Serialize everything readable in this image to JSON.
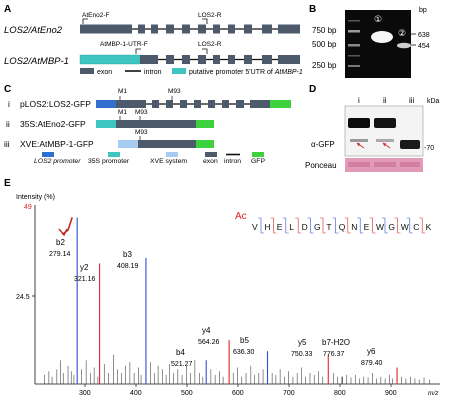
{
  "panelA": {
    "letter": "A",
    "row1_label": "LOS2/AtEno2",
    "row2_label": "LOS2/AtMBP-1",
    "primer_f1": "AtEno2-F",
    "primer_r1": "LOS2-R",
    "primer_f2": "AtMBP-1-UTR-F",
    "primer_r2": "LOS2-R",
    "legend_exon": "exon",
    "legend_intron": "intron",
    "legend_promoter_prefix": "putative promoter 5'UTR of ",
    "legend_promoter_gene": "AtMBP-1",
    "colors": {
      "exon": "#4d5a6b",
      "promoter": "#3fc4c2",
      "intron": "#111111"
    }
  },
  "panelB": {
    "letter": "B",
    "unit": "bp",
    "ladder": [
      "750 bp",
      "500 bp",
      "250 bp"
    ],
    "right_labels": [
      "638",
      "454"
    ],
    "lane_marks": [
      "①",
      "②"
    ]
  },
  "panelC": {
    "letter": "C",
    "constructs": [
      {
        "roman": "i",
        "name": "pLOS2:LOS2-GFP"
      },
      {
        "roman": "ii",
        "name": "35S:AtEno2-GFP"
      },
      {
        "roman": "iii",
        "name": "XVE:AtMBP-1-GFP"
      }
    ],
    "m1": "M1",
    "m93": "M93",
    "legend": {
      "los2_promoter": "LOS2 promoter",
      "p35s": "35S promoter",
      "xve": "XVE system",
      "exon": "exon",
      "intron": "intron",
      "gfp": "GFP"
    },
    "colors": {
      "los2": "#2f6fd0",
      "p35s": "#3fc4c2",
      "xve": "#a6cdf0",
      "exon": "#4d5a6b",
      "gfp": "#3ed13e"
    }
  },
  "panelD": {
    "letter": "D",
    "lanes": [
      "i",
      "ii",
      "iii"
    ],
    "unit": "kDa",
    "marker": "-70",
    "antibody": "α-GFP",
    "ponceau": "Ponceau",
    "colors": {
      "ponceau": "#e39ab8"
    }
  },
  "panelE": {
    "letter": "E",
    "y_title": "Intensity (%)",
    "y_max_label": "49",
    "y_mid_label": "24.5",
    "x_unit": "m/z",
    "x_ticks": [
      "300",
      "400",
      "500",
      "600",
      "700",
      "800",
      "900"
    ],
    "ac_label": "Ac",
    "sequence": [
      "V",
      "H",
      "E",
      "L",
      "D",
      "G",
      "T",
      "Q",
      "N",
      "E",
      "W",
      "G",
      "W",
      "C",
      "K"
    ],
    "peaks": [
      {
        "label": "b2",
        "value": "279.14"
      },
      {
        "label": "y2",
        "value": "321.16"
      },
      {
        "label": "b3",
        "value": "408.19"
      },
      {
        "label": "b4",
        "value": "521.27"
      },
      {
        "label": "y4",
        "value": "564.26"
      },
      {
        "label": "b5",
        "value": "636.30"
      },
      {
        "label": "y5",
        "value": "750.33"
      },
      {
        "label": "b7-H2O",
        "value": "776.37"
      },
      {
        "label": "y6",
        "value": "879.40"
      }
    ],
    "spectrum": {
      "x_range": [
        200,
        960
      ],
      "y_max": 49,
      "labeled": [
        {
          "mz": 279.14,
          "i": 45.5,
          "ion": "b"
        },
        {
          "mz": 321.16,
          "i": 33.0,
          "ion": "y"
        },
        {
          "mz": 408.19,
          "i": 34.5,
          "ion": "b"
        },
        {
          "mz": 521.27,
          "i": 6.5,
          "ion": "b"
        },
        {
          "mz": 564.26,
          "i": 12.0,
          "ion": "y"
        },
        {
          "mz": 636.3,
          "i": 9.0,
          "ion": "b"
        },
        {
          "mz": 750.33,
          "i": 8.0,
          "ion": "y"
        },
        {
          "mz": 776.37,
          "i": 2.0,
          "ion": "o"
        },
        {
          "mz": 879.4,
          "i": 4.5,
          "ion": "y"
        }
      ],
      "minor": [
        [
          218,
          2.5
        ],
        [
          226,
          3.5
        ],
        [
          232,
          2
        ],
        [
          241,
          4
        ],
        [
          248,
          6.5
        ],
        [
          253,
          3
        ],
        [
          262,
          5
        ],
        [
          268,
          3.5
        ],
        [
          273,
          2.5
        ],
        [
          287,
          4
        ],
        [
          296,
          6.5
        ],
        [
          304,
          3
        ],
        [
          311,
          4.5
        ],
        [
          318,
          2
        ],
        [
          330,
          5.5
        ],
        [
          338,
          3
        ],
        [
          347,
          8
        ],
        [
          355,
          4
        ],
        [
          362,
          3
        ],
        [
          370,
          5
        ],
        [
          378,
          6
        ],
        [
          386,
          3
        ],
        [
          394,
          4.5
        ],
        [
          399,
          2.5
        ],
        [
          417,
          6
        ],
        [
          424,
          3
        ],
        [
          431,
          5
        ],
        [
          439,
          4
        ],
        [
          446,
          2.5
        ],
        [
          452,
          5.5
        ],
        [
          460,
          3
        ],
        [
          468,
          4
        ],
        [
          476,
          2.5
        ],
        [
          484,
          5
        ],
        [
          492,
          3
        ],
        [
          500,
          6.5
        ],
        [
          509,
          3
        ],
        [
          515,
          2
        ],
        [
          530,
          4
        ],
        [
          538,
          2.5
        ],
        [
          546,
          3.5
        ],
        [
          553,
          2
        ],
        [
          572,
          3
        ],
        [
          580,
          4.5
        ],
        [
          588,
          2
        ],
        [
          596,
          3
        ],
        [
          605,
          5
        ],
        [
          612,
          2.5
        ],
        [
          620,
          3
        ],
        [
          628,
          4
        ],
        [
          645,
          3
        ],
        [
          652,
          2.5
        ],
        [
          660,
          4
        ],
        [
          668,
          2
        ],
        [
          676,
          3.5
        ],
        [
          684,
          2
        ],
        [
          692,
          3
        ],
        [
          700,
          4.5
        ],
        [
          708,
          2
        ],
        [
          716,
          3
        ],
        [
          724,
          2.5
        ],
        [
          732,
          3.5
        ],
        [
          740,
          2
        ],
        [
          760,
          3
        ],
        [
          768,
          2
        ],
        [
          785,
          2.5
        ],
        [
          793,
          1.8
        ],
        [
          801,
          2.5
        ],
        [
          809,
          1.5
        ],
        [
          817,
          2
        ],
        [
          825,
          1.8
        ],
        [
          833,
          3
        ],
        [
          841,
          1.5
        ],
        [
          849,
          2
        ],
        [
          857,
          1.5
        ],
        [
          865,
          2.5
        ],
        [
          871,
          1.5
        ],
        [
          888,
          2
        ],
        [
          896,
          1.5
        ],
        [
          905,
          2
        ],
        [
          913,
          1.5
        ],
        [
          921,
          1.2
        ],
        [
          930,
          1.8
        ],
        [
          940,
          1.2
        ]
      ]
    },
    "colors": {
      "b": "#2c4fd6",
      "y": "#e02424",
      "o": "#333333",
      "arrow": "#c0282a",
      "ac": "#e02424"
    }
  }
}
